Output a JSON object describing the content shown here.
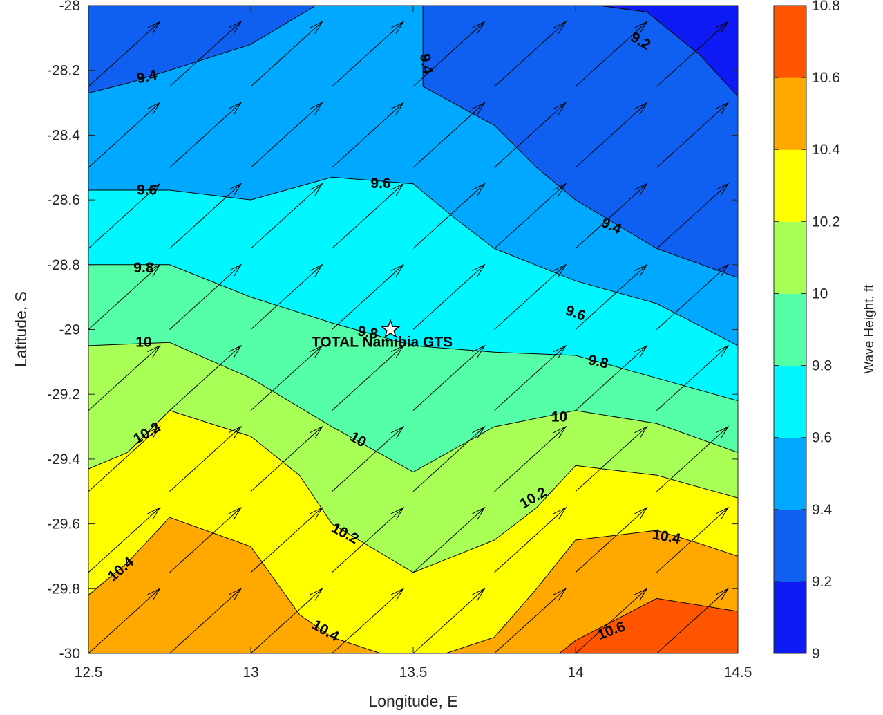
{
  "chart_data": {
    "type": "contour",
    "xlabel": "Longitude, E",
    "ylabel": "Latitude, S",
    "xlim": [
      12.5,
      14.5
    ],
    "ylim": [
      -30,
      -28
    ],
    "x_ticks": [
      {
        "value": 12.5,
        "label": "12.5"
      },
      {
        "value": 13,
        "label": "13"
      },
      {
        "value": 13.5,
        "label": "13.5"
      },
      {
        "value": 14,
        "label": "14"
      },
      {
        "value": 14.5,
        "label": "14.5"
      }
    ],
    "y_ticks": [
      {
        "value": -28,
        "label": "-28"
      },
      {
        "value": -28.2,
        "label": "-28.2"
      },
      {
        "value": -28.4,
        "label": "-28.4"
      },
      {
        "value": -28.6,
        "label": "-28.6"
      },
      {
        "value": -28.8,
        "label": "-28.8"
      },
      {
        "value": -29,
        "label": "-29"
      },
      {
        "value": -29.2,
        "label": "-29.2"
      },
      {
        "value": -29.4,
        "label": "-29.4"
      },
      {
        "value": -29.6,
        "label": "-29.6"
      },
      {
        "value": -29.8,
        "label": "-29.8"
      },
      {
        "value": -30,
        "label": "-30"
      }
    ],
    "colorbar": {
      "label": "Wave Height, ft",
      "range": [
        9,
        10.8
      ],
      "ticks": [
        {
          "value": 9,
          "label": "9"
        },
        {
          "value": 9.2,
          "label": "9.2"
        },
        {
          "value": 9.4,
          "label": "9.4"
        },
        {
          "value": 9.6,
          "label": "9.6"
        },
        {
          "value": 9.8,
          "label": "9.8"
        },
        {
          "value": 10,
          "label": "10"
        },
        {
          "value": 10.2,
          "label": "10.2"
        },
        {
          "value": 10.4,
          "label": "10.4"
        },
        {
          "value": 10.6,
          "label": "10.6"
        },
        {
          "value": 10.8,
          "label": "10.8"
        }
      ],
      "bands": [
        {
          "from": 9.0,
          "to": 9.2,
          "color": "#0f1bf5"
        },
        {
          "from": 9.2,
          "to": 9.4,
          "color": "#0f60f0"
        },
        {
          "from": 9.4,
          "to": 9.6,
          "color": "#00a9ff"
        },
        {
          "from": 9.6,
          "to": 9.8,
          "color": "#00f7ff"
        },
        {
          "from": 9.8,
          "to": 10.0,
          "color": "#55ffa8"
        },
        {
          "from": 10.0,
          "to": 10.2,
          "color": "#a8ff55"
        },
        {
          "from": 10.2,
          "to": 10.4,
          "color": "#ffff00"
        },
        {
          "from": 10.4,
          "to": 10.6,
          "color": "#ffa800"
        },
        {
          "from": 10.6,
          "to": 10.8,
          "color": "#ff5500"
        }
      ]
    },
    "contour_lines": [
      {
        "level": 9.2,
        "label": "9.2",
        "points": [
          [
            14.0,
            -27.99
          ],
          [
            14.22,
            -28.02
          ],
          [
            14.38,
            -28.15
          ],
          [
            14.5,
            -28.28
          ]
        ]
      },
      {
        "level": 9.4,
        "label": "9.4",
        "points": [
          [
            12.5,
            -28.27
          ],
          [
            12.62,
            -28.24
          ],
          [
            12.75,
            -28.2
          ],
          [
            13.0,
            -28.12
          ],
          [
            13.2,
            -28.0
          ]
        ]
      },
      {
        "level": 9.4,
        "label": "9.4",
        "points": [
          [
            13.53,
            -28.0
          ],
          [
            13.53,
            -28.25
          ],
          [
            13.75,
            -28.37
          ],
          [
            13.88,
            -28.5
          ],
          [
            14.0,
            -28.6
          ],
          [
            14.25,
            -28.75
          ],
          [
            14.5,
            -28.84
          ]
        ]
      },
      {
        "level": 9.6,
        "label": "9.6",
        "points": [
          [
            12.5,
            -28.57
          ],
          [
            12.75,
            -28.57
          ],
          [
            13.0,
            -28.6
          ],
          [
            13.25,
            -28.53
          ],
          [
            13.5,
            -28.55
          ],
          [
            13.62,
            -28.65
          ],
          [
            13.75,
            -28.75
          ],
          [
            14.0,
            -28.85
          ],
          [
            14.25,
            -28.92
          ],
          [
            14.5,
            -29.05
          ]
        ]
      },
      {
        "level": 9.8,
        "label": "9.8",
        "points": [
          [
            12.5,
            -28.8
          ],
          [
            12.75,
            -28.8
          ],
          [
            13.0,
            -28.9
          ],
          [
            13.25,
            -28.98
          ],
          [
            13.5,
            -29.05
          ],
          [
            13.75,
            -29.07
          ],
          [
            14.0,
            -29.08
          ],
          [
            14.25,
            -29.15
          ],
          [
            14.5,
            -29.22
          ]
        ]
      },
      {
        "level": 10.0,
        "label": "10",
        "points": [
          [
            12.5,
            -29.05
          ],
          [
            12.75,
            -29.04
          ],
          [
            13.0,
            -29.15
          ],
          [
            13.25,
            -29.3
          ],
          [
            13.5,
            -29.44
          ],
          [
            13.75,
            -29.3
          ],
          [
            14.0,
            -29.25
          ],
          [
            14.25,
            -29.29
          ],
          [
            14.5,
            -29.38
          ]
        ]
      },
      {
        "level": 10.2,
        "label": "10.2",
        "points": [
          [
            12.5,
            -29.43
          ],
          [
            12.62,
            -29.38
          ],
          [
            12.75,
            -29.25
          ],
          [
            13.0,
            -29.33
          ],
          [
            13.15,
            -29.45
          ],
          [
            13.25,
            -29.6
          ],
          [
            13.5,
            -29.75
          ],
          [
            13.75,
            -29.65
          ],
          [
            13.88,
            -29.55
          ],
          [
            14.0,
            -29.42
          ],
          [
            14.25,
            -29.45
          ],
          [
            14.5,
            -29.52
          ]
        ]
      },
      {
        "level": 10.4,
        "label": "10.4",
        "points": [
          [
            12.5,
            -29.82
          ],
          [
            12.62,
            -29.72
          ],
          [
            12.75,
            -29.58
          ],
          [
            13.0,
            -29.67
          ],
          [
            13.15,
            -29.88
          ],
          [
            13.25,
            -29.95
          ],
          [
            13.4,
            -30.0
          ]
        ]
      },
      {
        "level": 10.4,
        "label": "10.4",
        "points": [
          [
            13.6,
            -30.0
          ],
          [
            13.75,
            -29.95
          ],
          [
            13.88,
            -29.8
          ],
          [
            14.0,
            -29.65
          ],
          [
            14.25,
            -29.62
          ],
          [
            14.38,
            -29.66
          ],
          [
            14.5,
            -29.7
          ]
        ]
      },
      {
        "level": 10.6,
        "label": "10.6",
        "points": [
          [
            13.95,
            -30.0
          ],
          [
            14.0,
            -29.96
          ],
          [
            14.25,
            -29.83
          ],
          [
            14.5,
            -29.87
          ]
        ]
      }
    ],
    "contour_labels": [
      {
        "text": "9.4",
        "x": 12.68,
        "y": -28.22,
        "angle": -12
      },
      {
        "text": "9.4",
        "x": 13.54,
        "y": -28.18,
        "angle": 80
      },
      {
        "text": "9.2",
        "x": 14.2,
        "y": -28.11,
        "angle": 30
      },
      {
        "text": "9.6",
        "x": 12.68,
        "y": -28.57,
        "angle": 0
      },
      {
        "text": "9.6",
        "x": 13.4,
        "y": -28.55,
        "angle": 0
      },
      {
        "text": "9.4",
        "x": 14.11,
        "y": -28.68,
        "angle": 25
      },
      {
        "text": "9.8",
        "x": 12.67,
        "y": -28.81,
        "angle": 0
      },
      {
        "text": "9.6",
        "x": 14.0,
        "y": -28.95,
        "angle": 20
      },
      {
        "text": "9.8",
        "x": 13.36,
        "y": -29.01,
        "angle": 10
      },
      {
        "text": "10",
        "x": 12.67,
        "y": -29.04,
        "angle": 0
      },
      {
        "text": "9.8",
        "x": 14.07,
        "y": -29.1,
        "angle": 12
      },
      {
        "text": "10",
        "x": 13.33,
        "y": -29.34,
        "angle": 30
      },
      {
        "text": "10",
        "x": 13.95,
        "y": -29.27,
        "angle": 0
      },
      {
        "text": "10.2",
        "x": 12.68,
        "y": -29.32,
        "angle": -30
      },
      {
        "text": "10.2",
        "x": 13.87,
        "y": -29.52,
        "angle": -30
      },
      {
        "text": "10.2",
        "x": 13.29,
        "y": -29.63,
        "angle": 28
      },
      {
        "text": "10.4",
        "x": 12.6,
        "y": -29.74,
        "angle": -40
      },
      {
        "text": "10.4",
        "x": 14.28,
        "y": -29.64,
        "angle": 10
      },
      {
        "text": "10.4",
        "x": 13.23,
        "y": -29.93,
        "angle": 30
      },
      {
        "text": "10.6",
        "x": 14.11,
        "y": -29.93,
        "angle": -20
      }
    ],
    "vector_grid": {
      "lon": [
        12.5,
        12.75,
        13.0,
        13.25,
        13.5,
        13.75,
        14.0,
        14.25,
        14.5
      ],
      "lat": [
        -28.0,
        -28.25,
        -28.5,
        -28.75,
        -29.0,
        -29.25,
        -29.5,
        -29.75,
        -30.0
      ],
      "direction": "toward northeast",
      "dx": 0.22,
      "dy": 0.2
    },
    "annotations": [
      {
        "text": "TOTAL Namibia GTS",
        "x": 13.43,
        "y": -29.0,
        "marker": "star"
      }
    ]
  }
}
